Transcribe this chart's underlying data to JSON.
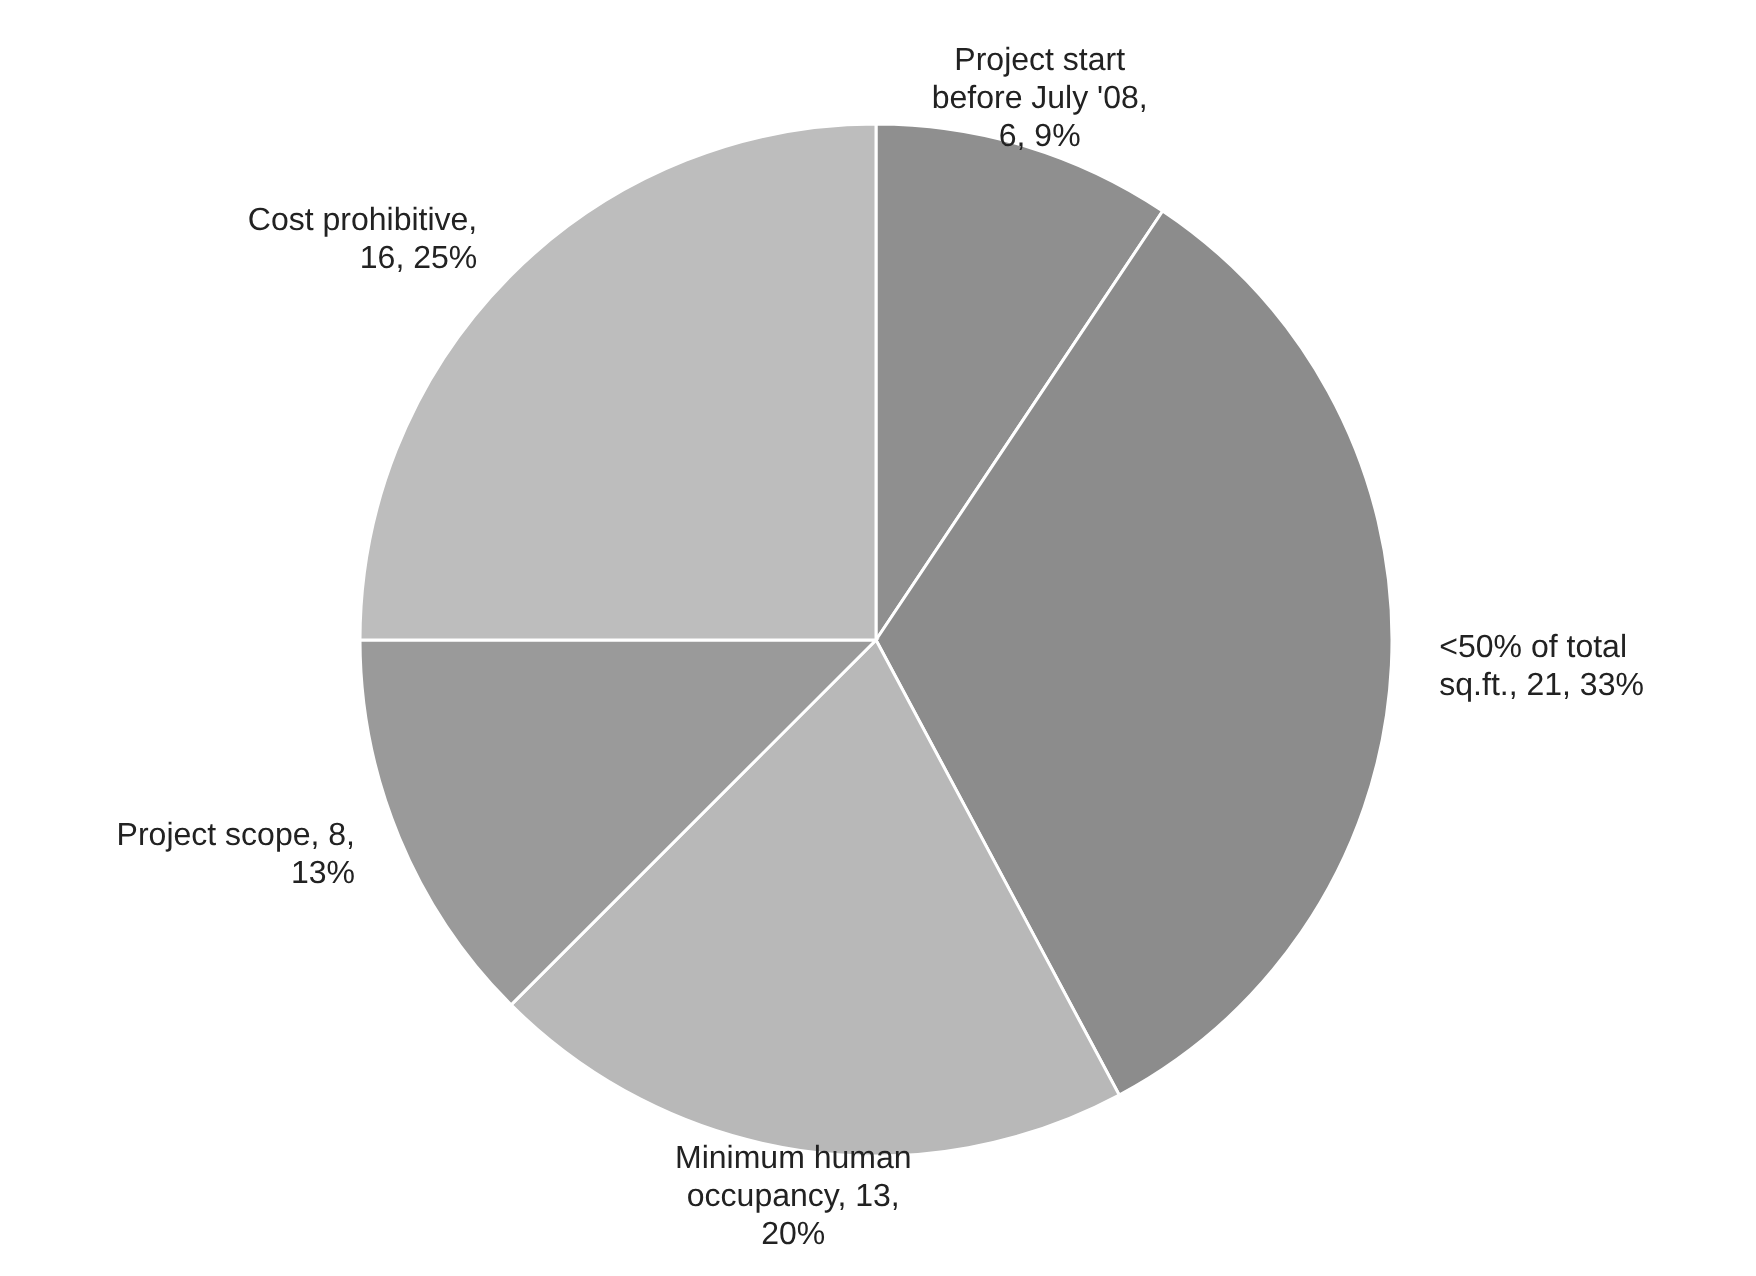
{
  "chart_data": {
    "type": "pie",
    "categories": [
      "Project start before July '08, 6, 9%",
      "<50% of total sq.ft., 21, 33%",
      "Minimum human occupancy, 13, 20%",
      "Project scope, 8, 13%",
      "Cost prohibitive, 16, 25%"
    ],
    "values": [
      6,
      21,
      13,
      8,
      16
    ],
    "colors": [
      "#8f8f8f",
      "#8c8c8c",
      "#b8b8b8",
      "#9a9a9a",
      "#bdbdbd"
    ]
  }
}
